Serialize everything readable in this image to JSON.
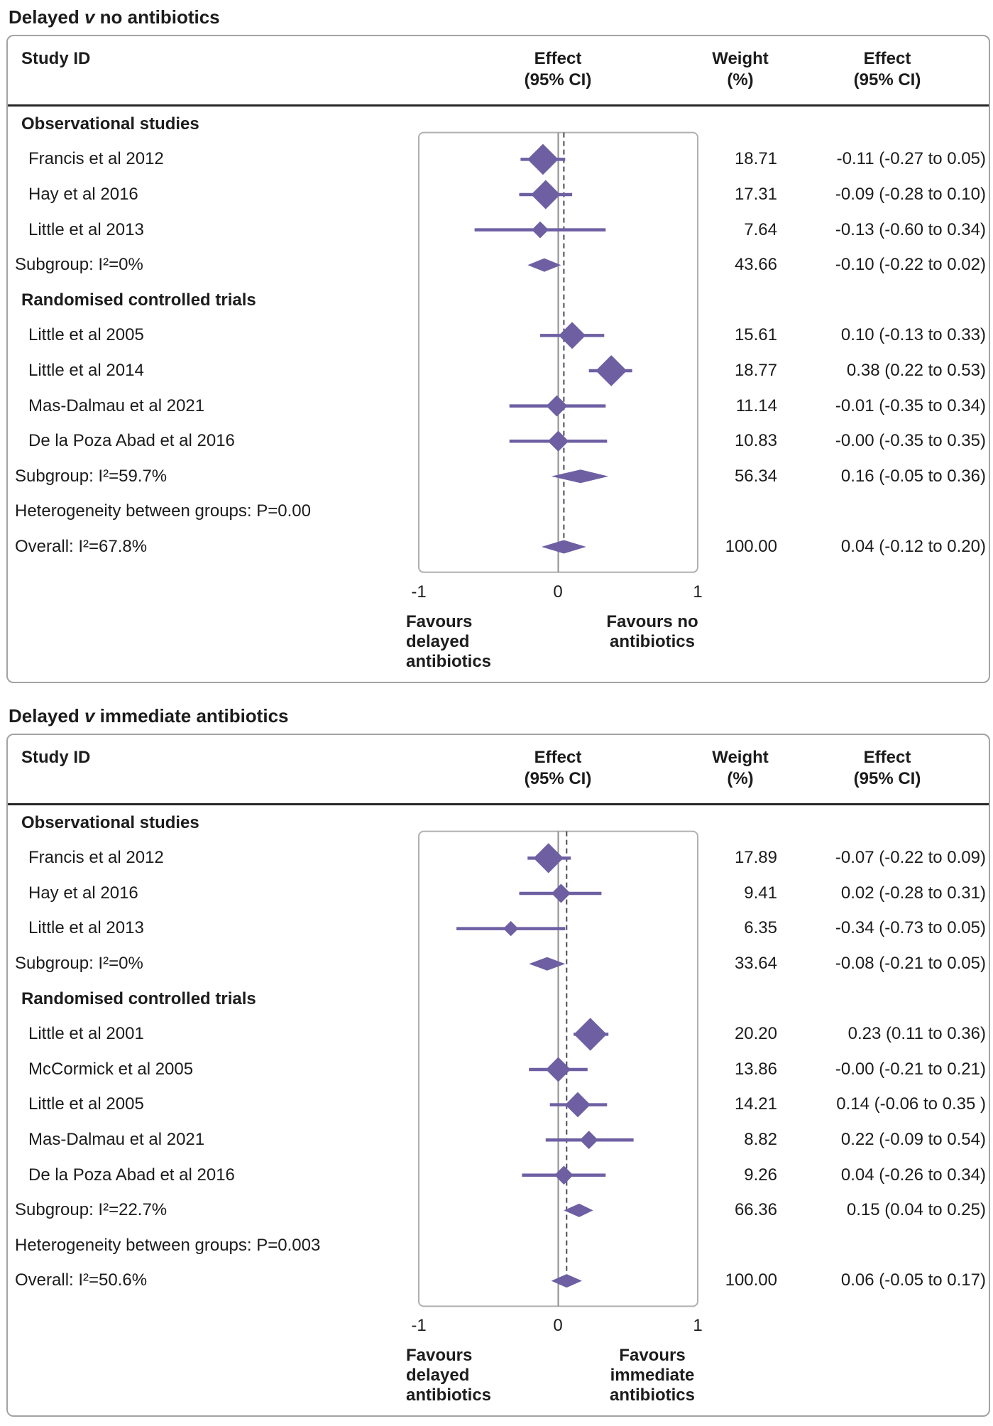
{
  "colors": {
    "purple": "#6e5fa3",
    "plot_frame": "#b0b0b0",
    "zero_line": "#8f8f8f",
    "dashed_line": "#4a4a58",
    "panel_border": "#a3a3a3",
    "rule": "#262626"
  },
  "chart_data": [
    {
      "type": "forest",
      "title": {
        "pre": "Delayed ",
        "v": "v",
        "post": " no antibiotics"
      },
      "headers": {
        "study": "Study ID",
        "effect_plot": "Effect\n(95% CI)",
        "weight": "Weight\n(%)",
        "effect_ci": "Effect\n(95% CI)"
      },
      "axis": {
        "min": -1,
        "max": 1,
        "tick_values": [
          -1,
          0,
          1
        ],
        "tick_labels": [
          "-1",
          "0",
          "1"
        ]
      },
      "favours_left": "Favours\ndelayed\nantibiotics",
      "favours_right": "Favours no\nantibiotics",
      "overall_est": 0.04,
      "rows": [
        {
          "type": "section",
          "label": "Observational studies"
        },
        {
          "type": "study",
          "label": "Francis et al 2012",
          "est": -0.11,
          "lo": -0.27,
          "hi": 0.05,
          "weight": "18.71",
          "effect": "-0.11 (-0.27 to 0.05)"
        },
        {
          "type": "study",
          "label": "Hay et al 2016",
          "est": -0.09,
          "lo": -0.28,
          "hi": 0.1,
          "weight": "17.31",
          "effect": "-0.09 (-0.28 to 0.10)"
        },
        {
          "type": "study",
          "label": "Little et al 2013",
          "est": -0.13,
          "lo": -0.6,
          "hi": 0.34,
          "weight": "7.64",
          "effect": "-0.13 (-0.60 to 0.34)"
        },
        {
          "type": "subgroup",
          "label": "Subgroup: I²=0%",
          "est": -0.1,
          "lo": -0.22,
          "hi": 0.02,
          "weight": "43.66",
          "effect": "-0.10 (-0.22 to 0.02)"
        },
        {
          "type": "section",
          "label": "Randomised controlled trials"
        },
        {
          "type": "study",
          "label": "Little et al 2005",
          "est": 0.1,
          "lo": -0.13,
          "hi": 0.33,
          "weight": "15.61",
          "effect": "0.10 (-0.13 to 0.33)"
        },
        {
          "type": "study",
          "label": "Little et al 2014",
          "est": 0.38,
          "lo": 0.22,
          "hi": 0.53,
          "weight": "18.77",
          "effect": "0.38 (0.22 to 0.53)"
        },
        {
          "type": "study",
          "label": "Mas-Dalmau et al 2021",
          "est": -0.01,
          "lo": -0.35,
          "hi": 0.34,
          "weight": "11.14",
          "effect": "-0.01 (-0.35 to 0.34)"
        },
        {
          "type": "study",
          "label": "De la Poza Abad et al 2016",
          "est": -0.0,
          "lo": -0.35,
          "hi": 0.35,
          "weight": "10.83",
          "effect": "-0.00 (-0.35 to 0.35)"
        },
        {
          "type": "subgroup",
          "label": "Subgroup: I²=59.7%",
          "est": 0.16,
          "lo": -0.05,
          "hi": 0.36,
          "weight": "56.34",
          "effect": "0.16 (-0.05 to 0.36)"
        },
        {
          "type": "het",
          "label": "Heterogeneity between groups: P=0.00"
        },
        {
          "type": "overall",
          "label": "Overall: I²=67.8%",
          "est": 0.04,
          "lo": -0.12,
          "hi": 0.2,
          "weight": "100.00",
          "effect": "0.04 (-0.12 to 0.20)"
        }
      ]
    },
    {
      "type": "forest",
      "title": {
        "pre": "Delayed ",
        "v": "v",
        "post": " immediate antibiotics"
      },
      "headers": {
        "study": "Study ID",
        "effect_plot": "Effect\n(95% CI)",
        "weight": "Weight\n(%)",
        "effect_ci": "Effect\n(95% CI)"
      },
      "axis": {
        "min": -1,
        "max": 1,
        "tick_values": [
          -1,
          0,
          1
        ],
        "tick_labels": [
          "-1",
          "0",
          "1"
        ]
      },
      "favours_left": "Favours\ndelayed\nantibiotics",
      "favours_right": "Favours\nimmediate\nantibiotics",
      "overall_est": 0.06,
      "rows": [
        {
          "type": "section",
          "label": "Observational studies"
        },
        {
          "type": "study",
          "label": "Francis et al 2012",
          "est": -0.07,
          "lo": -0.22,
          "hi": 0.09,
          "weight": "17.89",
          "effect": "-0.07 (-0.22 to 0.09)"
        },
        {
          "type": "study",
          "label": "Hay et al 2016",
          "est": 0.02,
          "lo": -0.28,
          "hi": 0.31,
          "weight": "9.41",
          "effect": "0.02 (-0.28 to 0.31)"
        },
        {
          "type": "study",
          "label": "Little et al 2013",
          "est": -0.34,
          "lo": -0.73,
          "hi": 0.05,
          "weight": "6.35",
          "effect": "-0.34 (-0.73 to 0.05)"
        },
        {
          "type": "subgroup",
          "label": "Subgroup: I²=0%",
          "est": -0.08,
          "lo": -0.21,
          "hi": 0.05,
          "weight": "33.64",
          "effect": "-0.08 (-0.21 to 0.05)"
        },
        {
          "type": "section",
          "label": "Randomised controlled trials"
        },
        {
          "type": "study",
          "label": "Little et al 2001",
          "est": 0.23,
          "lo": 0.11,
          "hi": 0.36,
          "weight": "20.20",
          "effect": "0.23 (0.11 to 0.36)"
        },
        {
          "type": "study",
          "label": "McCormick et al 2005",
          "est": -0.0,
          "lo": -0.21,
          "hi": 0.21,
          "weight": "13.86",
          "effect": "-0.00 (-0.21 to 0.21)"
        },
        {
          "type": "study",
          "label": "Little et al 2005",
          "est": 0.14,
          "lo": -0.06,
          "hi": 0.35,
          "weight": "14.21",
          "effect": "0.14 (-0.06 to 0.35 )"
        },
        {
          "type": "study",
          "label": "Mas-Dalmau et al 2021",
          "est": 0.22,
          "lo": -0.09,
          "hi": 0.54,
          "weight": "8.82",
          "effect": "0.22 (-0.09 to 0.54)"
        },
        {
          "type": "study",
          "label": "De la Poza Abad et al 2016",
          "est": 0.04,
          "lo": -0.26,
          "hi": 0.34,
          "weight": "9.26",
          "effect": "0.04 (-0.26 to 0.34)"
        },
        {
          "type": "subgroup",
          "label": "Subgroup: I²=22.7%",
          "est": 0.15,
          "lo": 0.04,
          "hi": 0.25,
          "weight": "66.36",
          "effect": "0.15 (0.04 to 0.25)"
        },
        {
          "type": "het",
          "label": "Heterogeneity between groups: P=0.003"
        },
        {
          "type": "overall",
          "label": "Overall: I²=50.6%",
          "est": 0.06,
          "lo": -0.05,
          "hi": 0.17,
          "weight": "100.00",
          "effect": "0.06 (-0.05 to 0.17)"
        }
      ]
    }
  ]
}
